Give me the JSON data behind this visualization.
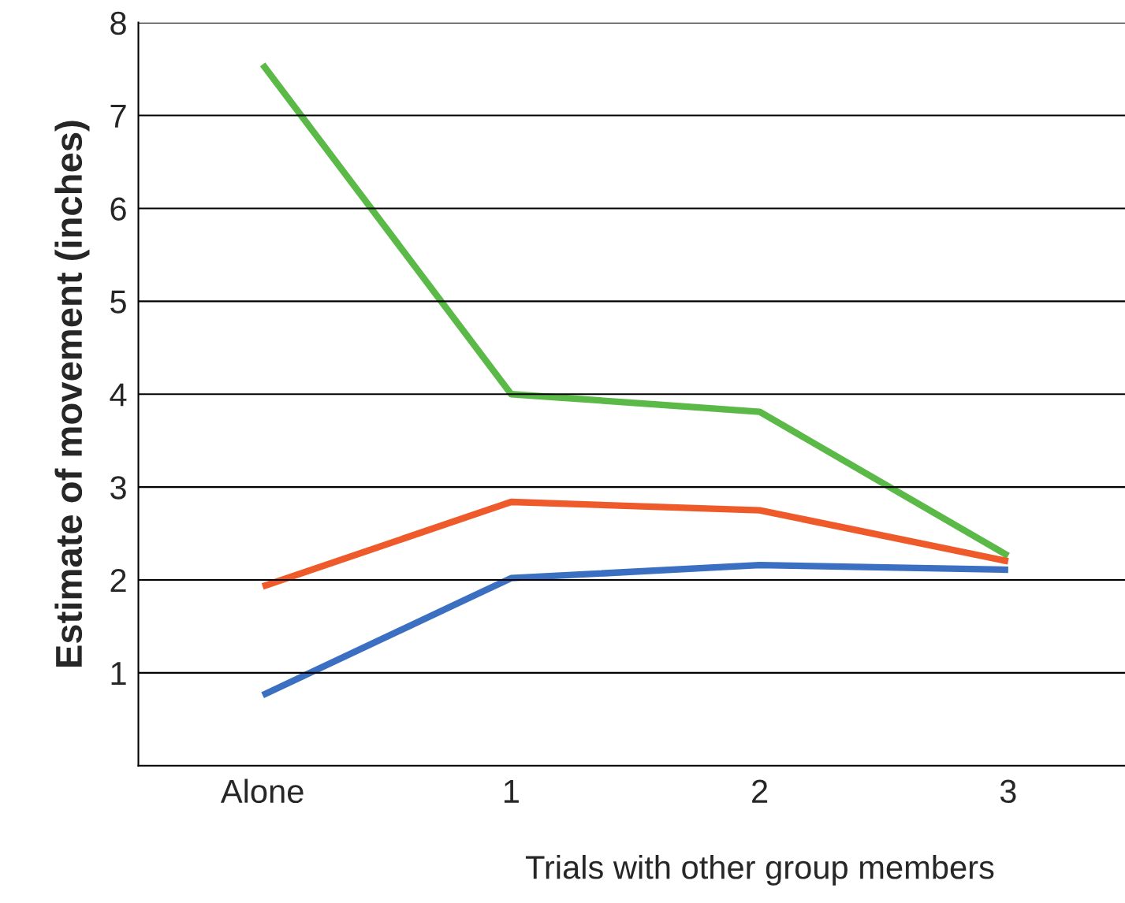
{
  "chart_data": {
    "type": "line",
    "xlabel": "Trials with other group members",
    "ylabel": "Estimate of movement (inches)",
    "categories": [
      "Alone",
      "1",
      "2",
      "3"
    ],
    "series": [
      {
        "color": "#5bb947",
        "values": [
          7.55,
          4.0,
          3.81,
          2.26
        ]
      },
      {
        "color": "#ee5a2a",
        "values": [
          1.93,
          2.84,
          2.75,
          2.2
        ]
      },
      {
        "color": "#3a6fc1",
        "values": [
          0.76,
          2.02,
          2.16,
          2.11
        ]
      }
    ],
    "ylim": [
      0,
      8
    ],
    "yticks": [
      1,
      2,
      3,
      4,
      5,
      6,
      7,
      8
    ],
    "grid": "y",
    "marker": "none",
    "line_style": "solid"
  }
}
